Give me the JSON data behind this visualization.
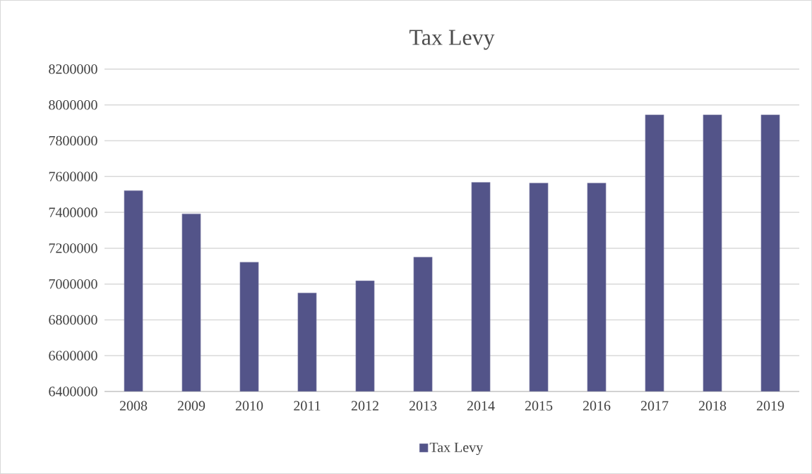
{
  "chart_data": {
    "type": "bar",
    "title": "Tax Levy",
    "categories": [
      "2008",
      "2009",
      "2010",
      "2011",
      "2012",
      "2013",
      "2014",
      "2015",
      "2016",
      "2017",
      "2018",
      "2019"
    ],
    "series": [
      {
        "name": "Tax Levy",
        "color": "#535489",
        "values": [
          7522000,
          7392000,
          7122000,
          6950000,
          7018000,
          7150000,
          7568000,
          7564000,
          7564000,
          7945000,
          7945000,
          7945000
        ]
      }
    ],
    "ylim": [
      6400000,
      8200000
    ],
    "yticks": [
      6400000,
      6600000,
      6800000,
      7000000,
      7200000,
      7400000,
      7600000,
      7800000,
      8000000,
      8200000
    ],
    "grid": "y",
    "legend": "bottom"
  }
}
